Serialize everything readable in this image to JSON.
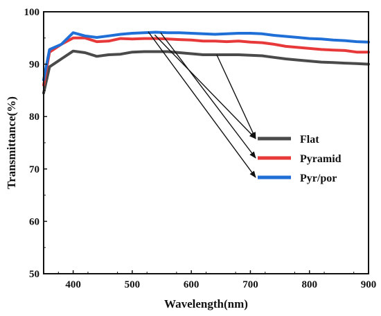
{
  "chart_data": {
    "type": "line",
    "title": "",
    "xlabel": "Wavelength(nm)",
    "ylabel": "Transmittance(%)",
    "xlim": [
      350,
      900
    ],
    "ylim": [
      50,
      100
    ],
    "xticks": [
      400,
      500,
      600,
      700,
      800,
      900
    ],
    "yticks": [
      50,
      60,
      70,
      80,
      90,
      100
    ],
    "legend_position": "center-right",
    "x": [
      350,
      360,
      380,
      400,
      420,
      440,
      460,
      480,
      500,
      520,
      540,
      560,
      580,
      600,
      620,
      640,
      660,
      680,
      700,
      720,
      740,
      760,
      780,
      800,
      820,
      840,
      860,
      880,
      900
    ],
    "series": [
      {
        "name": "Flat",
        "color": "#4a4a4a",
        "values": [
          84.5,
          89.5,
          91.0,
          92.5,
          92.2,
          91.5,
          91.8,
          91.9,
          92.3,
          92.4,
          92.4,
          92.4,
          92.2,
          92.0,
          91.8,
          91.8,
          91.8,
          91.8,
          91.7,
          91.6,
          91.3,
          91.0,
          90.8,
          90.6,
          90.4,
          90.3,
          90.2,
          90.1,
          90.0
        ]
      },
      {
        "name": "Pyramid",
        "color": "#e8393a",
        "values": [
          86.0,
          92.3,
          93.8,
          95.0,
          95.0,
          94.3,
          94.4,
          94.9,
          94.8,
          94.9,
          94.9,
          94.8,
          94.7,
          94.6,
          94.4,
          94.4,
          94.3,
          94.4,
          94.2,
          94.1,
          93.8,
          93.4,
          93.2,
          93.0,
          92.8,
          92.7,
          92.6,
          92.3,
          92.3
        ]
      },
      {
        "name": "Pyr/por",
        "color": "#1f6fd6",
        "values": [
          87.0,
          92.8,
          93.8,
          96.0,
          95.4,
          95.1,
          95.4,
          95.7,
          95.9,
          96.0,
          96.1,
          96.0,
          96.0,
          95.9,
          95.8,
          95.7,
          95.8,
          95.9,
          95.9,
          95.8,
          95.5,
          95.3,
          95.1,
          94.9,
          94.8,
          94.6,
          94.5,
          94.3,
          94.2
        ]
      }
    ],
    "annotations": "arrows from curves pointing to legend entries"
  }
}
